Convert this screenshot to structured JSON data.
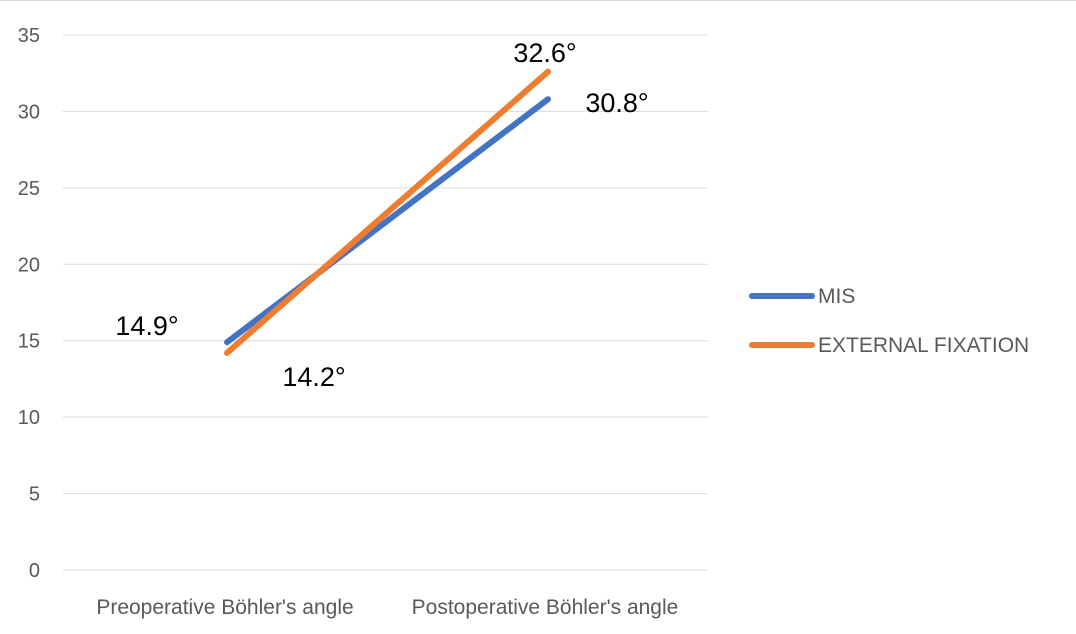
{
  "chart_data": {
    "type": "line",
    "categories": [
      "Preoperative Böhler's angle",
      "Postoperative Böhler's angle"
    ],
    "series": [
      {
        "name": "MIS",
        "values": [
          14.9,
          30.8
        ],
        "color": "#4472C4",
        "labels": [
          "14.9°",
          "30.8°"
        ]
      },
      {
        "name": "EXTERNAL FIXATION",
        "values": [
          14.2,
          32.6
        ],
        "color": "#ED7D31",
        "labels": [
          "14.2°",
          "32.6°"
        ]
      }
    ],
    "ylim": [
      0,
      35
    ],
    "yticks": [
      "0",
      "5",
      "10",
      "15",
      "20",
      "25",
      "30",
      "35"
    ],
    "grid": true,
    "legend_position": "right",
    "title": "",
    "xlabel": "",
    "ylabel": ""
  }
}
